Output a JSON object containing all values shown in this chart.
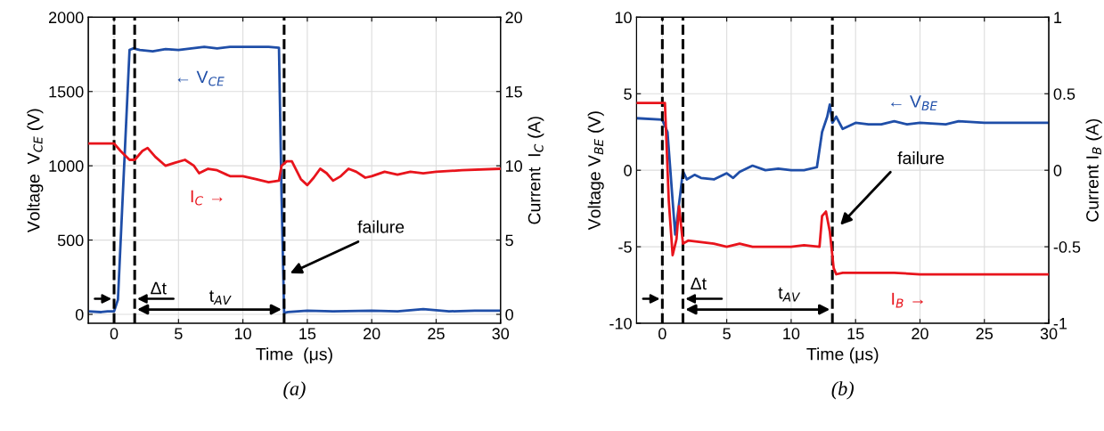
{
  "chart_data": [
    {
      "type": "line",
      "xlabel": "Time  (μs)",
      "ylabel": "Voltage  V$_{CE}$ (V)",
      "y2label": "Current  I$_{C}$ (A)",
      "xlim": [
        -2,
        30
      ],
      "xticks": [
        0,
        5,
        10,
        15,
        20,
        25,
        30
      ],
      "ylim": [
        -60,
        2000
      ],
      "yticks": [
        0,
        500,
        1000,
        1500,
        2000
      ],
      "y2lim": [
        -0.6,
        20
      ],
      "y2ticks": [
        0,
        5,
        10,
        15,
        20
      ],
      "grid": true,
      "line_style": "solid",
      "series": [
        {
          "color": "#1f4ea8",
          "x": [
            -2,
            -1,
            -0.5,
            0,
            0.3,
            1.2,
            1.5,
            2,
            3,
            4,
            5,
            6,
            7,
            8,
            9,
            10,
            11,
            12,
            12.8,
            13.0,
            13.2,
            13.5,
            15,
            17,
            20,
            22,
            24,
            26,
            28,
            30
          ],
          "values": [
            20,
            15,
            20,
            20,
            100,
            1780,
            1790,
            1780,
            1770,
            1785,
            1780,
            1790,
            1800,
            1790,
            1800,
            1800,
            1800,
            1800,
            1795,
            800,
            10,
            15,
            25,
            20,
            25,
            20,
            35,
            20,
            25,
            25
          ]
        },
        {
          "color": "#e8141c",
          "axis": "y2",
          "x": [
            -2,
            -0.5,
            0,
            0.5,
            1.2,
            1.6,
            2.2,
            2.6,
            3.2,
            4.0,
            4.7,
            5.5,
            6.2,
            6.6,
            7.3,
            8.0,
            9,
            10,
            11,
            12,
            12.8,
            13.0,
            13.4,
            13.8,
            14.5,
            15.0,
            15.5,
            16.0,
            16.5,
            17.0,
            17.6,
            18.2,
            18.8,
            19.5,
            20,
            21,
            22,
            23,
            24,
            25,
            27,
            30
          ],
          "values": [
            11.5,
            11.5,
            11.5,
            11.0,
            10.4,
            10.4,
            11.0,
            11.2,
            10.6,
            10.0,
            10.2,
            10.4,
            10.0,
            9.5,
            9.8,
            9.7,
            9.3,
            9.3,
            9.1,
            8.9,
            9.0,
            10.0,
            10.3,
            10.3,
            9.1,
            8.7,
            9.2,
            9.8,
            9.5,
            9.0,
            9.3,
            9.8,
            9.6,
            9.2,
            9.3,
            9.6,
            9.4,
            9.6,
            9.5,
            9.6,
            9.7,
            9.8
          ]
        }
      ],
      "ref_lines": [
        {
          "axis": "x",
          "value": 0,
          "color": "#000000",
          "line_style": "dashed"
        },
        {
          "axis": "x",
          "value": 1.6,
          "color": "#000000",
          "line_style": "dashed"
        },
        {
          "axis": "x",
          "value": 13.2,
          "color": "#000000",
          "line_style": "dashed"
        }
      ],
      "annotations": [
        "← V$_{CE}$",
        "I$_{C}$ →",
        "failure",
        "Δt",
        "t$_{AV}$",
        "(a)"
      ]
    },
    {
      "type": "line",
      "xlabel": "Time (μs)",
      "ylabel": "Voltage V$_{BE}$ (V)",
      "y2label": "Current I$_{B}$ (A)",
      "xlim": [
        -2,
        30
      ],
      "xticks": [
        0,
        5,
        10,
        15,
        20,
        25,
        30
      ],
      "ylim": [
        -10,
        10
      ],
      "yticks": [
        {
          "value": -10,
          "label": "-10"
        },
        {
          "value": -5,
          "label": "-5"
        },
        0,
        5,
        10
      ],
      "y2lim": [
        -1,
        1
      ],
      "y2ticks": [
        {
          "value": -1,
          "label": "-1"
        },
        {
          "value": -0.5,
          "label": "-0.5"
        },
        0,
        0.5,
        1
      ],
      "grid": true,
      "line_style": "solid",
      "series": [
        {
          "color": "#1f4ea8",
          "x": [
            -2,
            0,
            0.4,
            0.8,
            1.0,
            1.4,
            1.6,
            1.9,
            2.5,
            3,
            4,
            5,
            5.5,
            6,
            7,
            8,
            9,
            10,
            11,
            12,
            12.4,
            12.8,
            13.0,
            13.2,
            13.5,
            14,
            15,
            16,
            17,
            18,
            19,
            20,
            22,
            23,
            25,
            28,
            30
          ],
          "values": [
            3.4,
            3.3,
            2.5,
            -2,
            -4.2,
            -1.5,
            -0.05,
            -0.6,
            -0.3,
            -0.5,
            -0.6,
            -0.2,
            -0.5,
            -0.1,
            0.3,
            0,
            0.1,
            0,
            0,
            0.2,
            2.5,
            3.5,
            4.3,
            3.1,
            3.5,
            2.7,
            3.1,
            3.0,
            3.0,
            3.2,
            3.0,
            3.1,
            3.0,
            3.2,
            3.1,
            3.1,
            3.1
          ]
        },
        {
          "color": "#e8141c",
          "axis": "y2",
          "x": [
            -2,
            0.2,
            0.5,
            0.8,
            1.1,
            1.3,
            1.6,
            2,
            3,
            4,
            5,
            6,
            7,
            8,
            9,
            10,
            11,
            12.2,
            12.4,
            12.7,
            13.0,
            13.3,
            13.5,
            14,
            16,
            18,
            20,
            25,
            30
          ],
          "values": [
            0.44,
            0.44,
            -0.2,
            -0.555,
            -0.45,
            -0.236,
            -0.48,
            -0.46,
            -0.47,
            -0.48,
            -0.5,
            -0.48,
            -0.5,
            -0.5,
            -0.5,
            -0.5,
            -0.49,
            -0.5,
            -0.3,
            -0.27,
            -0.4,
            -0.64,
            -0.68,
            -0.67,
            -0.67,
            -0.67,
            -0.68,
            -0.68,
            -0.68
          ]
        }
      ],
      "ref_lines": [
        {
          "axis": "x",
          "value": 0,
          "color": "#000000",
          "line_style": "dashed"
        },
        {
          "axis": "x",
          "value": 1.6,
          "color": "#000000",
          "line_style": "dashed"
        },
        {
          "axis": "x",
          "value": 13.2,
          "color": "#000000",
          "line_style": "dashed"
        }
      ],
      "annotations": [
        "← V$_{BE}$",
        "failure",
        "Δt",
        "t$_{AV}$",
        "I$_{B}$ →",
        "(b)"
      ]
    }
  ]
}
